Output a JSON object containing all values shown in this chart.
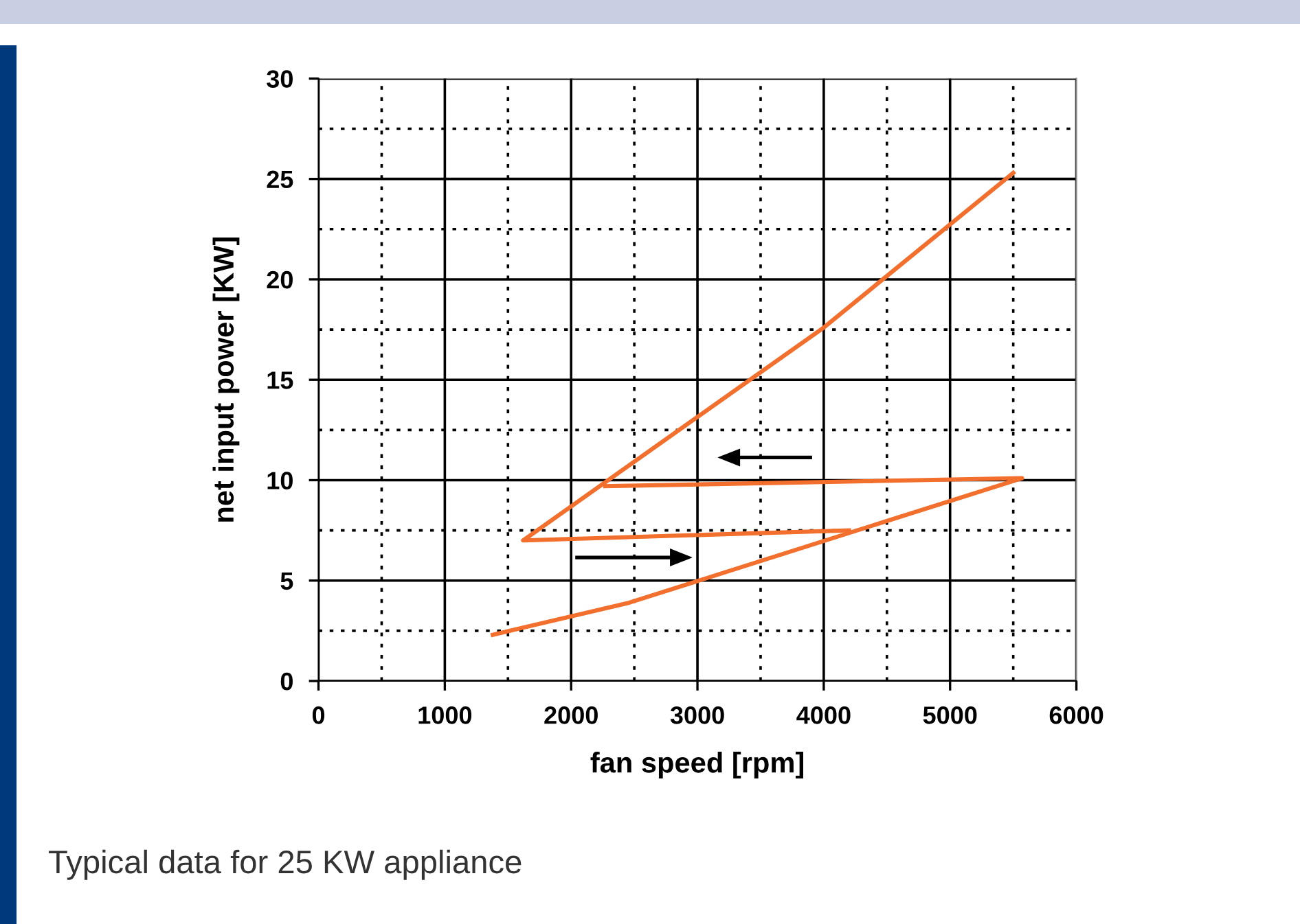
{
  "chart_data": {
    "type": "line",
    "xlabel": "fan speed [rpm]",
    "ylabel": "net input power [KW]",
    "series": [
      {
        "color": "#f26f2d",
        "x": [
          1380,
          2460,
          5570,
          2270
        ],
        "values": [
          2.3,
          3.9,
          10.1,
          9.7
        ]
      },
      {
        "color": "#f26f2d",
        "x": [
          5500,
          4000,
          1620,
          4200
        ],
        "values": [
          25.3,
          17.6,
          7.0,
          7.5
        ]
      }
    ],
    "xlim": [
      0,
      6000
    ],
    "xticks": [
      0,
      1000,
      2000,
      3000,
      4000,
      5000,
      6000
    ],
    "ylim": [
      0,
      30
    ],
    "yticks": [
      0,
      5,
      10,
      15,
      20,
      25,
      30
    ],
    "grid": true,
    "line_style": "solid",
    "marker": "none",
    "annotations": [
      "Typical data for 25 KW appliance"
    ]
  }
}
